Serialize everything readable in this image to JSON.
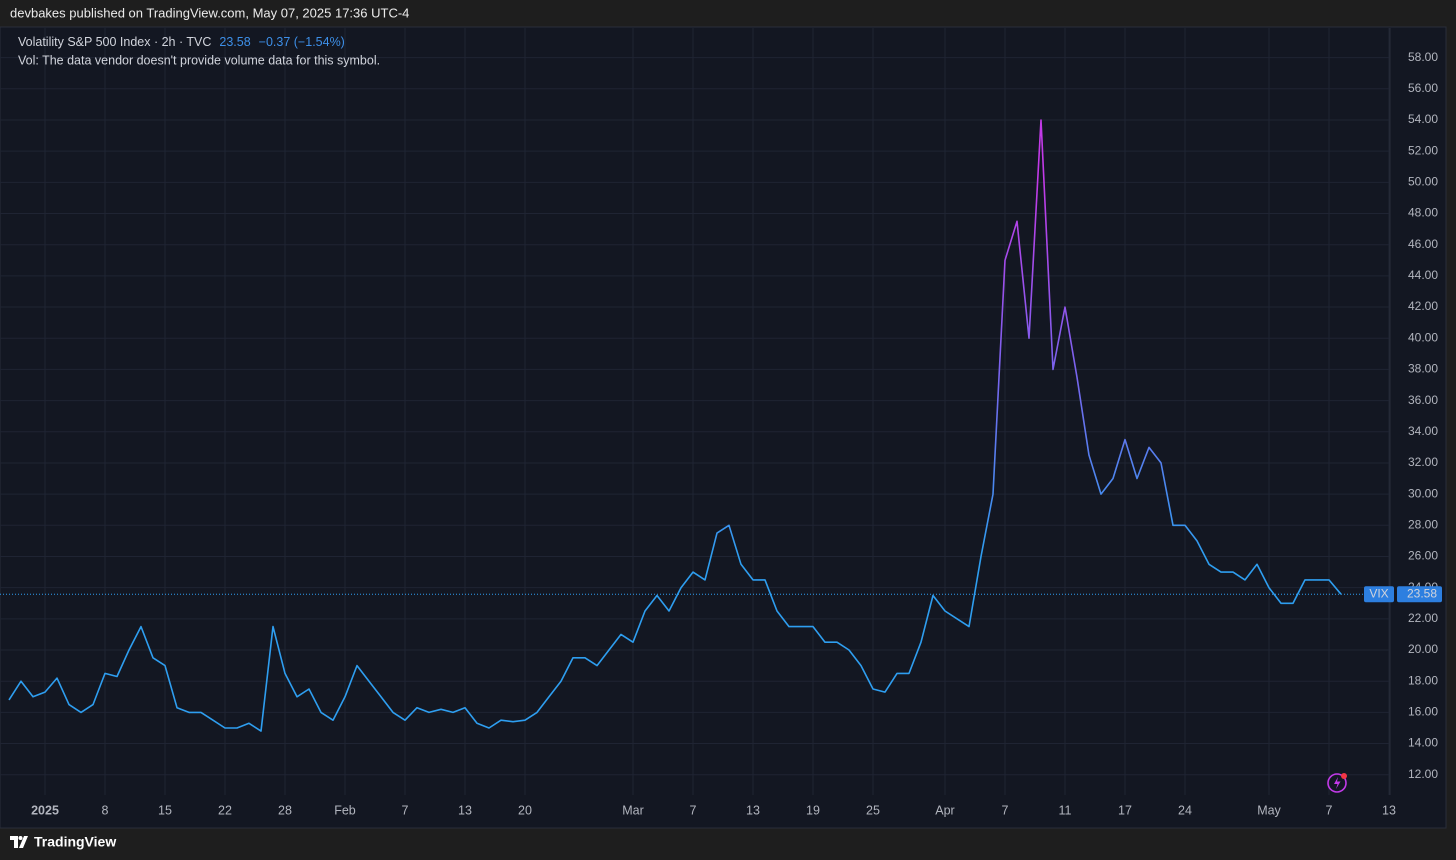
{
  "header": "devbakes published on TradingView.com, May 07, 2025 17:36 UTC-4",
  "footer": "TradingView",
  "chart_data": {
    "type": "line",
    "title": "Volatility S&P 500 Index · 2h · TVC",
    "change": "−0.37 (−1.54%)",
    "subtitle": "Vol: The data vendor doesn't provide volume data for this symbol.",
    "categories": [
      null,
      null,
      null,
      "2025",
      null,
      null,
      null,
      null,
      "8",
      null,
      null,
      null,
      null,
      "15",
      null,
      null,
      null,
      null,
      "22",
      null,
      null,
      null,
      null,
      "28",
      null,
      null,
      null,
      null,
      "Feb",
      null,
      null,
      null,
      null,
      "7",
      null,
      null,
      null,
      null,
      "13",
      null,
      null,
      null,
      null,
      "20",
      null,
      null,
      null,
      null,
      null,
      null,
      null,
      null,
      "Mar",
      null,
      null,
      null,
      null,
      "7",
      null,
      null,
      null,
      null,
      "13",
      null,
      null,
      null,
      null,
      "19",
      null,
      null,
      null,
      null,
      "25",
      null,
      null,
      null,
      null,
      null,
      "Apr",
      null,
      null,
      null,
      null,
      "7",
      null,
      null,
      null,
      null,
      "11",
      null,
      null,
      null,
      null,
      "17",
      null,
      null,
      null,
      null,
      "24",
      null,
      null,
      null,
      null,
      null,
      null,
      "May",
      null,
      null,
      null,
      null,
      "7",
      null,
      null,
      null,
      null,
      "13"
    ],
    "series": [
      {
        "name": "VIX",
        "color": "#2e9ef0",
        "gradient": [
          "#2e9ef0",
          "#7a63ee",
          "#c23ae8"
        ],
        "values": [
          16.8,
          18.0,
          17.0,
          17.3,
          18.2,
          16.5,
          16.0,
          16.5,
          18.5,
          18.3,
          20.0,
          21.5,
          19.5,
          19.0,
          16.3,
          16.0,
          16.0,
          15.5,
          15.0,
          15.0,
          15.3,
          14.8,
          21.5,
          18.5,
          17.0,
          17.5,
          16.0,
          15.5,
          17.0,
          19.0,
          18.0,
          17.0,
          16.0,
          15.5,
          16.3,
          16.0,
          16.2,
          16.0,
          16.3,
          15.3,
          15.0,
          15.5,
          15.4,
          15.5,
          16.0,
          17.0,
          18.0,
          19.5,
          19.5,
          19.0,
          20.0,
          21.0,
          20.5,
          22.5,
          23.5,
          22.5,
          24.0,
          25.0,
          24.5,
          27.5,
          28.0,
          25.5,
          24.5,
          24.5,
          22.5,
          21.5,
          21.5,
          21.5,
          20.5,
          20.5,
          20.0,
          19.0,
          17.5,
          17.3,
          18.5,
          18.5,
          20.5,
          23.5,
          22.5,
          22.0,
          21.5,
          26.0,
          30.0,
          45.0,
          47.5,
          40.0,
          54.0,
          38.0,
          42.0,
          37.5,
          32.5,
          30.0,
          31.0,
          33.5,
          31.0,
          33.0,
          32.0,
          28.0,
          28.0,
          27.0,
          25.5,
          25.0,
          25.0,
          24.5,
          25.5,
          24.0,
          23.0,
          23.0,
          24.5,
          24.5,
          24.5,
          23.58,
          null,
          null,
          null,
          null
        ]
      }
    ],
    "ylim": [
      10.7,
      59.9
    ],
    "yticks": [
      {
        "value": 12,
        "label": "12.00"
      },
      {
        "value": 14,
        "label": "14.00"
      },
      {
        "value": 16,
        "label": "16.00"
      },
      {
        "value": 18,
        "label": "18.00"
      },
      {
        "value": 20,
        "label": "20.00"
      },
      {
        "value": 22,
        "label": "22.00"
      },
      {
        "value": 24,
        "label": "24.00"
      },
      {
        "value": 26,
        "label": "26.00"
      },
      {
        "value": 28,
        "label": "28.00"
      },
      {
        "value": 30,
        "label": "30.00"
      },
      {
        "value": 32,
        "label": "32.00"
      },
      {
        "value": 34,
        "label": "34.00"
      },
      {
        "value": 36,
        "label": "36.00"
      },
      {
        "value": 38,
        "label": "38.00"
      },
      {
        "value": 40,
        "label": "40.00"
      },
      {
        "value": 42,
        "label": "42.00"
      },
      {
        "value": 44,
        "label": "44.00"
      },
      {
        "value": 46,
        "label": "46.00"
      },
      {
        "value": 48,
        "label": "48.00"
      },
      {
        "value": 50,
        "label": "50.00"
      },
      {
        "value": 52,
        "label": "52.00"
      },
      {
        "value": 54,
        "label": "54.00"
      },
      {
        "value": 56,
        "label": "56.00"
      },
      {
        "value": 58,
        "label": "58.00"
      }
    ],
    "grid": true
  }
}
